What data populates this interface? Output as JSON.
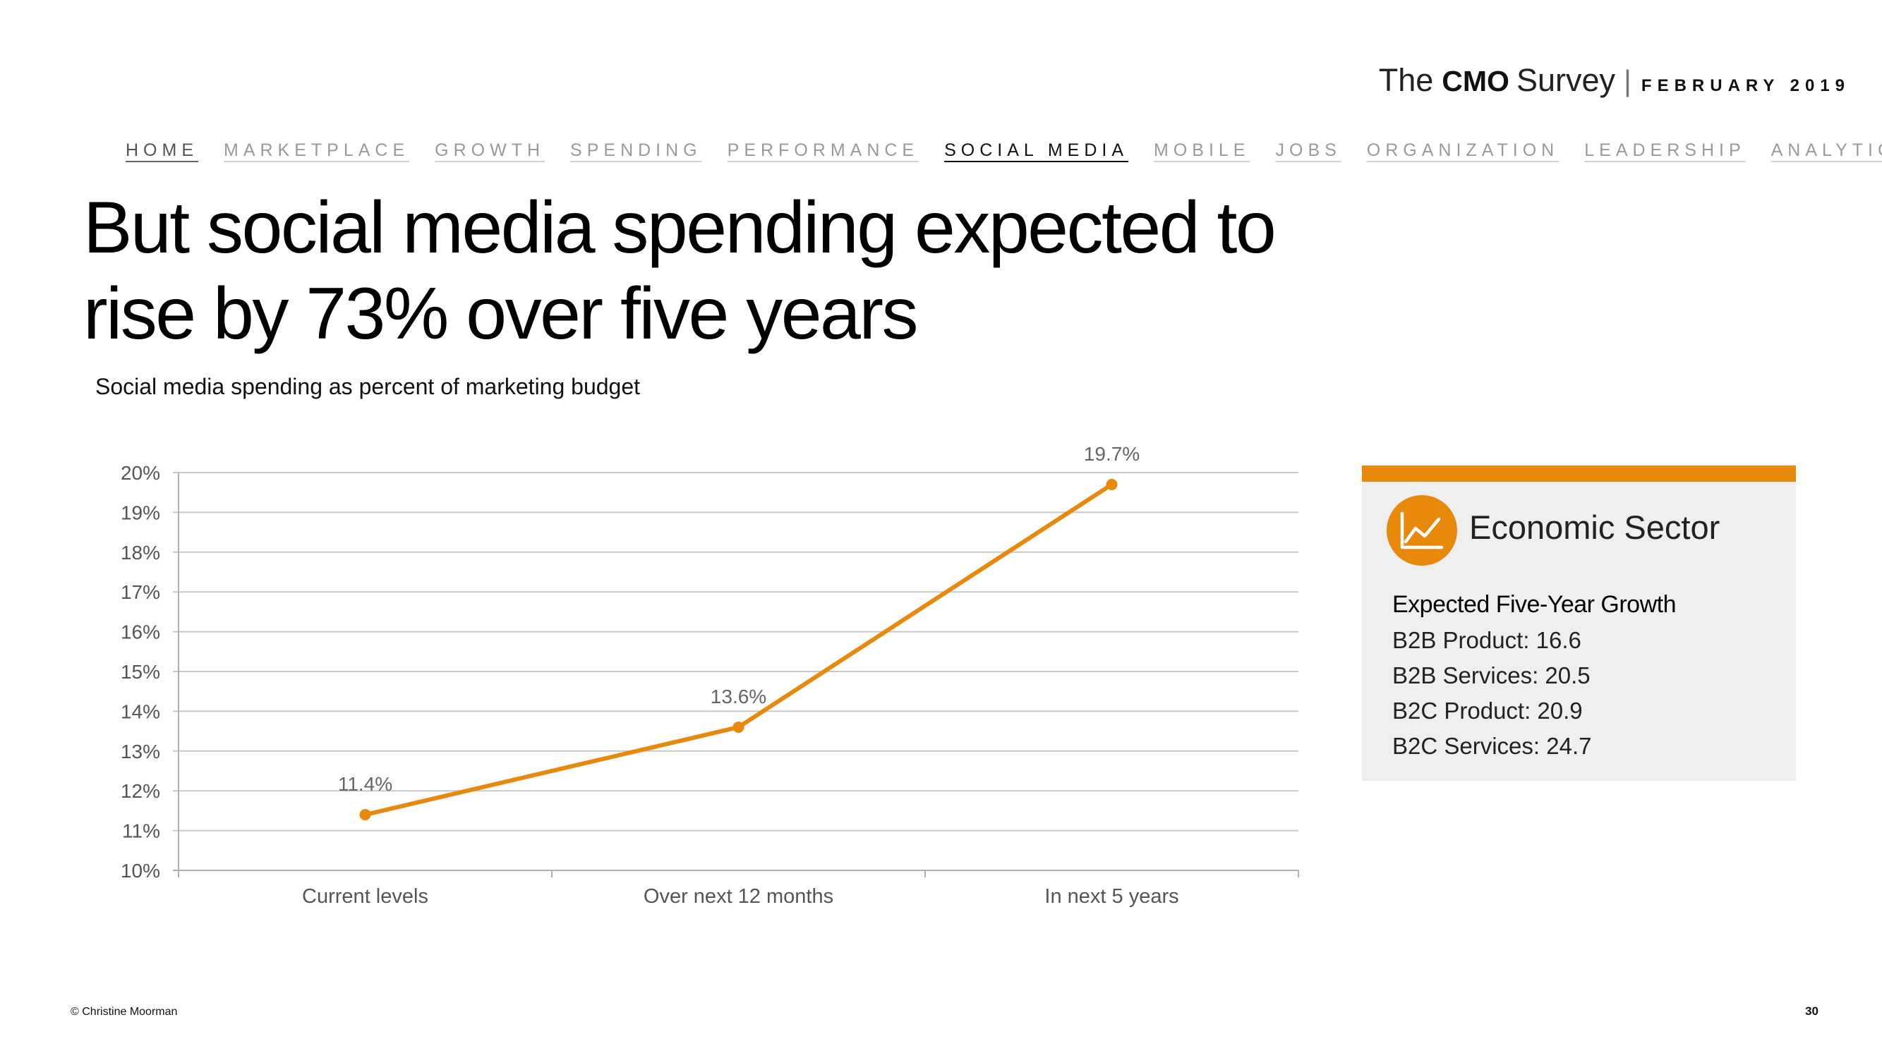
{
  "header": {
    "brand_the": "The",
    "brand_cmo": "CMO",
    "brand_survey": "Survey",
    "separator": "|",
    "date": "FEBRUARY 2019"
  },
  "nav": {
    "items": [
      "HOME",
      "MARKETPLACE",
      "GROWTH",
      "SPENDING",
      "PERFORMANCE",
      "SOCIAL MEDIA",
      "MOBILE",
      "JOBS",
      "ORGANIZATION",
      "LEADERSHIP",
      "ANALYTICS"
    ],
    "active": "SOCIAL MEDIA"
  },
  "title": "But social media spending expected to rise by 73% over five years",
  "subtitle": "Social media spending as percent of marketing budget",
  "chart_data": {
    "type": "line",
    "title": "Social media spending as percent of marketing budget",
    "categories": [
      "Current levels",
      "Over next 12 months",
      "In next 5 years"
    ],
    "series": [
      {
        "name": "Social media spending",
        "values": [
          11.4,
          13.6,
          19.7
        ]
      }
    ],
    "data_labels": [
      "11.4%",
      "13.6%",
      "19.7%"
    ],
    "ylim": [
      10,
      20
    ],
    "yticks": [
      10,
      11,
      12,
      13,
      14,
      15,
      16,
      17,
      18,
      19,
      20
    ],
    "ytick_labels": [
      "10%",
      "11%",
      "12%",
      "13%",
      "14%",
      "15%",
      "16%",
      "17%",
      "18%",
      "19%",
      "20%"
    ],
    "xlabel": "",
    "ylabel": "",
    "grid": true,
    "line_color": "#e8890b",
    "grid_color": "#c8c8c8"
  },
  "sidebar": {
    "heading": "Economic Sector",
    "icon": "line-chart-icon",
    "growth_title": "Expected Five-Year Growth",
    "items": [
      "B2B Product: 16.6",
      "B2B Services: 20.5",
      "B2C Product: 20.9",
      "B2C Services: 24.7"
    ],
    "accent_color": "#e8890b"
  },
  "footer": {
    "copyright": "© Christine Moorman",
    "page_number": "30"
  }
}
